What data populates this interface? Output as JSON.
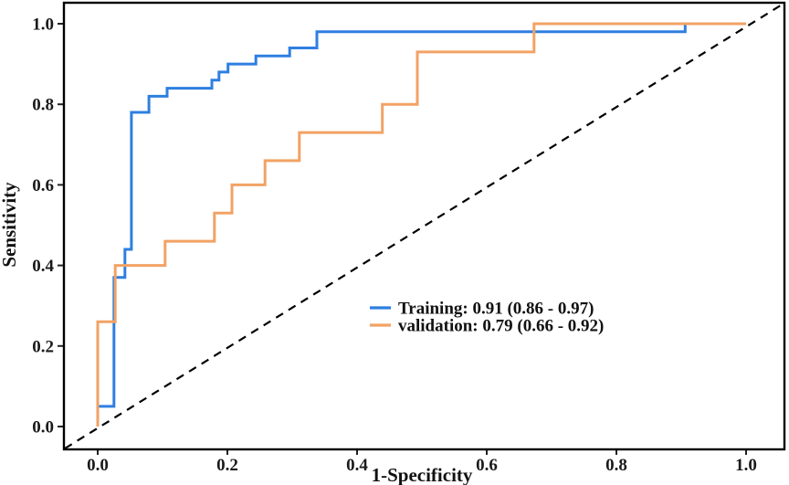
{
  "figure": {
    "background_color": "#ffffff",
    "panel_border_color": "#000000"
  },
  "chart_data": {
    "type": "line",
    "subtype": "roc-step-curves",
    "title": "",
    "xlabel": "1-Specificity",
    "ylabel": "Sensitivity",
    "xlim": [
      0,
      1
    ],
    "ylim": [
      0,
      1
    ],
    "grid": "off",
    "legend_position": "inside-center-right",
    "x_ticks": [
      0.0,
      0.2,
      0.4,
      0.6,
      0.8,
      1.0
    ],
    "x_tick_labels": [
      "0.0",
      "0.2",
      "0.4",
      "0.6",
      "0.8",
      "1.0"
    ],
    "y_ticks": [
      0.0,
      0.2,
      0.4,
      0.6,
      0.8,
      1.0
    ],
    "y_tick_labels": [
      "0.0",
      "0.2",
      "0.4",
      "0.6",
      "0.8",
      "1.0"
    ],
    "reference_line": {
      "description": "chance diagonal y = x",
      "style": "dashed",
      "color": "#000000"
    },
    "series": [
      {
        "name": "Training",
        "label": "Training: 0.91 (0.86 - 0.97)",
        "auc": 0.91,
        "ci_low": 0.86,
        "ci_high": 0.97,
        "color": "#2E7FE0",
        "points": [
          [
            0,
            0
          ],
          [
            0,
            0.05
          ],
          [
            0.025,
            0.05
          ],
          [
            0.025,
            0.37
          ],
          [
            0.042,
            0.37
          ],
          [
            0.042,
            0.44
          ],
          [
            0.052,
            0.44
          ],
          [
            0.052,
            0.78
          ],
          [
            0.079,
            0.78
          ],
          [
            0.079,
            0.82
          ],
          [
            0.107,
            0.82
          ],
          [
            0.107,
            0.84
          ],
          [
            0.176,
            0.84
          ],
          [
            0.176,
            0.86
          ],
          [
            0.187,
            0.86
          ],
          [
            0.187,
            0.88
          ],
          [
            0.201,
            0.88
          ],
          [
            0.201,
            0.9
          ],
          [
            0.244,
            0.9
          ],
          [
            0.244,
            0.92
          ],
          [
            0.296,
            0.92
          ],
          [
            0.296,
            0.94
          ],
          [
            0.338,
            0.94
          ],
          [
            0.338,
            0.98
          ],
          [
            0.906,
            0.98
          ],
          [
            0.906,
            1.0
          ],
          [
            1.0,
            1.0
          ]
        ]
      },
      {
        "name": "validation",
        "label": "validation: 0.79 (0.66 - 0.92)",
        "auc": 0.79,
        "ci_low": 0.66,
        "ci_high": 0.92,
        "color": "#F2A265",
        "points": [
          [
            0,
            0
          ],
          [
            0,
            0.26
          ],
          [
            0.027,
            0.26
          ],
          [
            0.027,
            0.4
          ],
          [
            0.104,
            0.4
          ],
          [
            0.104,
            0.46
          ],
          [
            0.18,
            0.46
          ],
          [
            0.18,
            0.53
          ],
          [
            0.207,
            0.53
          ],
          [
            0.207,
            0.6
          ],
          [
            0.258,
            0.6
          ],
          [
            0.258,
            0.66
          ],
          [
            0.311,
            0.66
          ],
          [
            0.311,
            0.73
          ],
          [
            0.439,
            0.73
          ],
          [
            0.439,
            0.8
          ],
          [
            0.493,
            0.8
          ],
          [
            0.493,
            0.93
          ],
          [
            0.673,
            0.93
          ],
          [
            0.673,
            1.0
          ],
          [
            1.0,
            1.0
          ]
        ]
      }
    ]
  }
}
